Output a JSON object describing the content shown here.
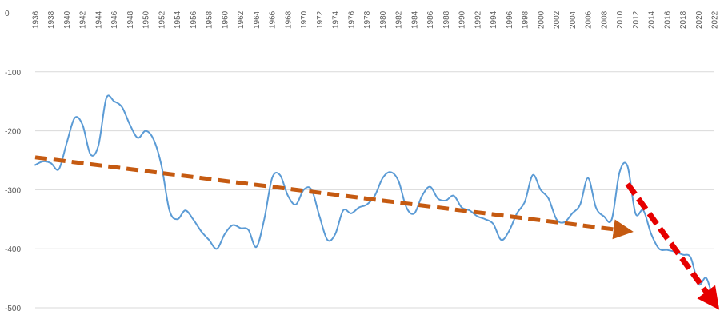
{
  "chart_data": {
    "type": "line",
    "title": "",
    "xlabel": "",
    "ylabel": "",
    "ylim": [
      -500,
      0
    ],
    "yticks": [
      0,
      -100,
      -200,
      -300,
      -400,
      -500
    ],
    "xlim": [
      1936,
      2022
    ],
    "xticks": [
      "1936",
      "1938",
      "1940",
      "1942",
      "1944",
      "1946",
      "1948",
      "1950",
      "1952",
      "1954",
      "1956",
      "1958",
      "1960",
      "1962",
      "1964",
      "1966",
      "1968",
      "1970",
      "1972",
      "1974",
      "1976",
      "1978",
      "1980",
      "1982",
      "1984",
      "1986",
      "1988",
      "1990",
      "1992",
      "1994",
      "1996",
      "1998",
      "2000",
      "2002",
      "2004",
      "2006",
      "2008",
      "2010",
      "2012",
      "2014",
      "2016",
      "2018",
      "2020",
      "2022"
    ],
    "grid": true,
    "legend": "none",
    "series": [
      {
        "color": "#5b9bd5",
        "x": [
          1936,
          1937,
          1938,
          1939,
          1940,
          1941,
          1942,
          1943,
          1944,
          1945,
          1946,
          1947,
          1948,
          1949,
          1950,
          1951,
          1952,
          1953,
          1954,
          1955,
          1956,
          1957,
          1958,
          1959,
          1960,
          1961,
          1962,
          1963,
          1964,
          1965,
          1966,
          1967,
          1968,
          1969,
          1970,
          1971,
          1972,
          1973,
          1974,
          1975,
          1976,
          1977,
          1978,
          1979,
          1980,
          1981,
          1982,
          1983,
          1984,
          1985,
          1986,
          1987,
          1988,
          1989,
          1990,
          1991,
          1992,
          1993,
          1994,
          1995,
          1996,
          1997,
          1998,
          1999,
          2000,
          2001,
          2002,
          2003,
          2004,
          2005,
          2006,
          2007,
          2008,
          2009,
          2010,
          2011,
          2012,
          2013,
          2014,
          2015,
          2016,
          2017,
          2018,
          2019,
          2020,
          2021,
          2022
        ],
        "values": [
          -258,
          -252,
          -255,
          -265,
          -220,
          -178,
          -190,
          -240,
          -225,
          -145,
          -150,
          -160,
          -190,
          -212,
          -200,
          -215,
          -260,
          -335,
          -350,
          -335,
          -350,
          -370,
          -385,
          -400,
          -375,
          -360,
          -365,
          -368,
          -397,
          -350,
          -280,
          -275,
          -310,
          -325,
          -300,
          -300,
          -345,
          -385,
          -375,
          -335,
          -340,
          -330,
          -325,
          -310,
          -280,
          -270,
          -285,
          -330,
          -340,
          -310,
          -295,
          -315,
          -318,
          -310,
          -330,
          -335,
          -345,
          -350,
          -358,
          -385,
          -370,
          -340,
          -320,
          -275,
          -300,
          -315,
          -350,
          -355,
          -340,
          -325,
          -280,
          -330,
          -345,
          -350,
          -270,
          -260,
          -340,
          -335,
          -375,
          -400,
          -402,
          -405,
          -410,
          -415,
          -460,
          -450,
          -495
        ]
      }
    ],
    "annotations": [
      {
        "type": "arrow",
        "style": "dashed",
        "color": "#c55a11",
        "from": {
          "x": 1936,
          "y": -245
        },
        "to": {
          "x": 2011,
          "y": -370
        }
      },
      {
        "type": "arrow",
        "style": "dashed",
        "color": "#e60000",
        "from": {
          "x": 2011,
          "y": -290
        },
        "to": {
          "x": 2022,
          "y": -492
        }
      }
    ]
  }
}
